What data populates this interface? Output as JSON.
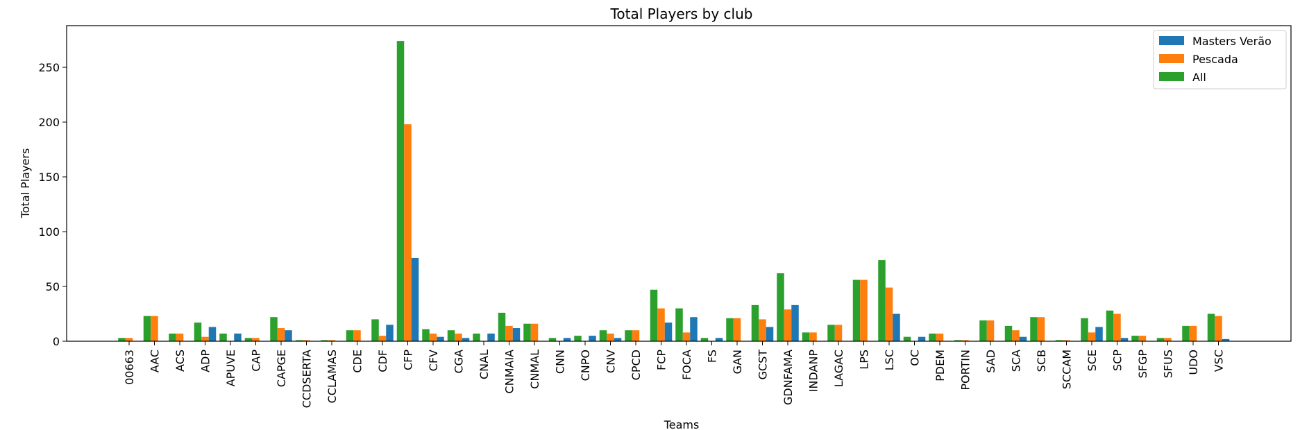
{
  "chart_data": {
    "type": "bar",
    "title": "Total Players by club",
    "xlabel": "Teams",
    "ylabel": "Total Players",
    "ylim": [
      0,
      288
    ],
    "yticks": [
      0,
      50,
      100,
      150,
      200,
      250
    ],
    "grid": false,
    "legend_position": "top-right",
    "categories": [
      "00663",
      "AAC",
      "ACS",
      "ADP",
      "APUVE",
      "CAP",
      "CAPGE",
      "CCDSERTA",
      "CCLAMAS",
      "CDE",
      "CDF",
      "CFP",
      "CFV",
      "CGA",
      "CNAL",
      "CNMAIA",
      "CNMAL",
      "CNN",
      "CNPO",
      "CNV",
      "CPCD",
      "FCP",
      "FOCA",
      "FS",
      "GAN",
      "GCST",
      "GDNFAMA",
      "INDANP",
      "LAGAC",
      "LPS",
      "LSC",
      "OC",
      "PDEM",
      "PORTIN",
      "SAD",
      "SCA",
      "SCB",
      "SCCAM",
      "SCE",
      "SCP",
      "SFGP",
      "SFUS",
      "UDO",
      "VSC"
    ],
    "series": [
      {
        "name": "All",
        "color": "#2ca02c",
        "values": [
          3,
          23,
          7,
          17,
          7,
          3,
          22,
          1,
          1,
          10,
          20,
          274,
          11,
          10,
          7,
          26,
          16,
          3,
          5,
          10,
          10,
          47,
          30,
          3,
          21,
          33,
          62,
          8,
          15,
          56,
          74,
          4,
          7,
          1,
          19,
          14,
          22,
          1,
          21,
          28,
          5,
          3,
          14,
          25
        ]
      },
      {
        "name": "Pescada",
        "color": "#ff7f0e",
        "values": [
          3,
          23,
          7,
          4,
          0,
          3,
          12,
          1,
          1,
          10,
          5,
          198,
          7,
          7,
          0,
          14,
          16,
          0,
          0,
          7,
          10,
          30,
          8,
          0,
          21,
          20,
          29,
          8,
          15,
          56,
          49,
          0,
          7,
          1,
          19,
          10,
          22,
          1,
          8,
          25,
          5,
          3,
          14,
          23
        ]
      },
      {
        "name": "Masters Verão",
        "color": "#1f77b4",
        "values": [
          0,
          0,
          0,
          13,
          7,
          0,
          10,
          0,
          0,
          0,
          15,
          76,
          4,
          3,
          7,
          12,
          0,
          3,
          5,
          3,
          0,
          17,
          22,
          3,
          0,
          13,
          33,
          0,
          0,
          0,
          25,
          4,
          0,
          0,
          0,
          4,
          0,
          0,
          13,
          3,
          0,
          0,
          0,
          2
        ]
      }
    ],
    "legend": [
      {
        "label": "Masters Verão",
        "color": "#1f77b4"
      },
      {
        "label": "Pescada",
        "color": "#ff7f0e"
      },
      {
        "label": "All",
        "color": "#2ca02c"
      }
    ]
  }
}
